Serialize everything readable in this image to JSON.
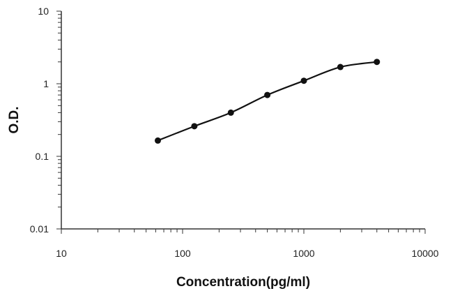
{
  "chart_data": {
    "type": "scatter",
    "xlabel": "Concentration(pg/ml)",
    "ylabel": "O.D.",
    "x_scale": "log",
    "y_scale": "log",
    "xlim": [
      10,
      10000
    ],
    "ylim": [
      0.01,
      10
    ],
    "x_ticks": [
      "10",
      "100",
      "1000",
      "10000"
    ],
    "y_ticks": [
      "10",
      "1",
      "0.1",
      "0.01"
    ],
    "grid": false,
    "legend": "none",
    "series": [
      {
        "x": [
          62.5,
          125,
          250,
          500,
          1000,
          2000,
          4000
        ],
        "y": [
          0.165,
          0.26,
          0.4,
          0.7,
          1.1,
          1.7,
          2.0
        ],
        "fit_curve": true
      }
    ],
    "colors": {
      "points": "#111111",
      "curve": "#111111",
      "axis": "#333333"
    }
  }
}
